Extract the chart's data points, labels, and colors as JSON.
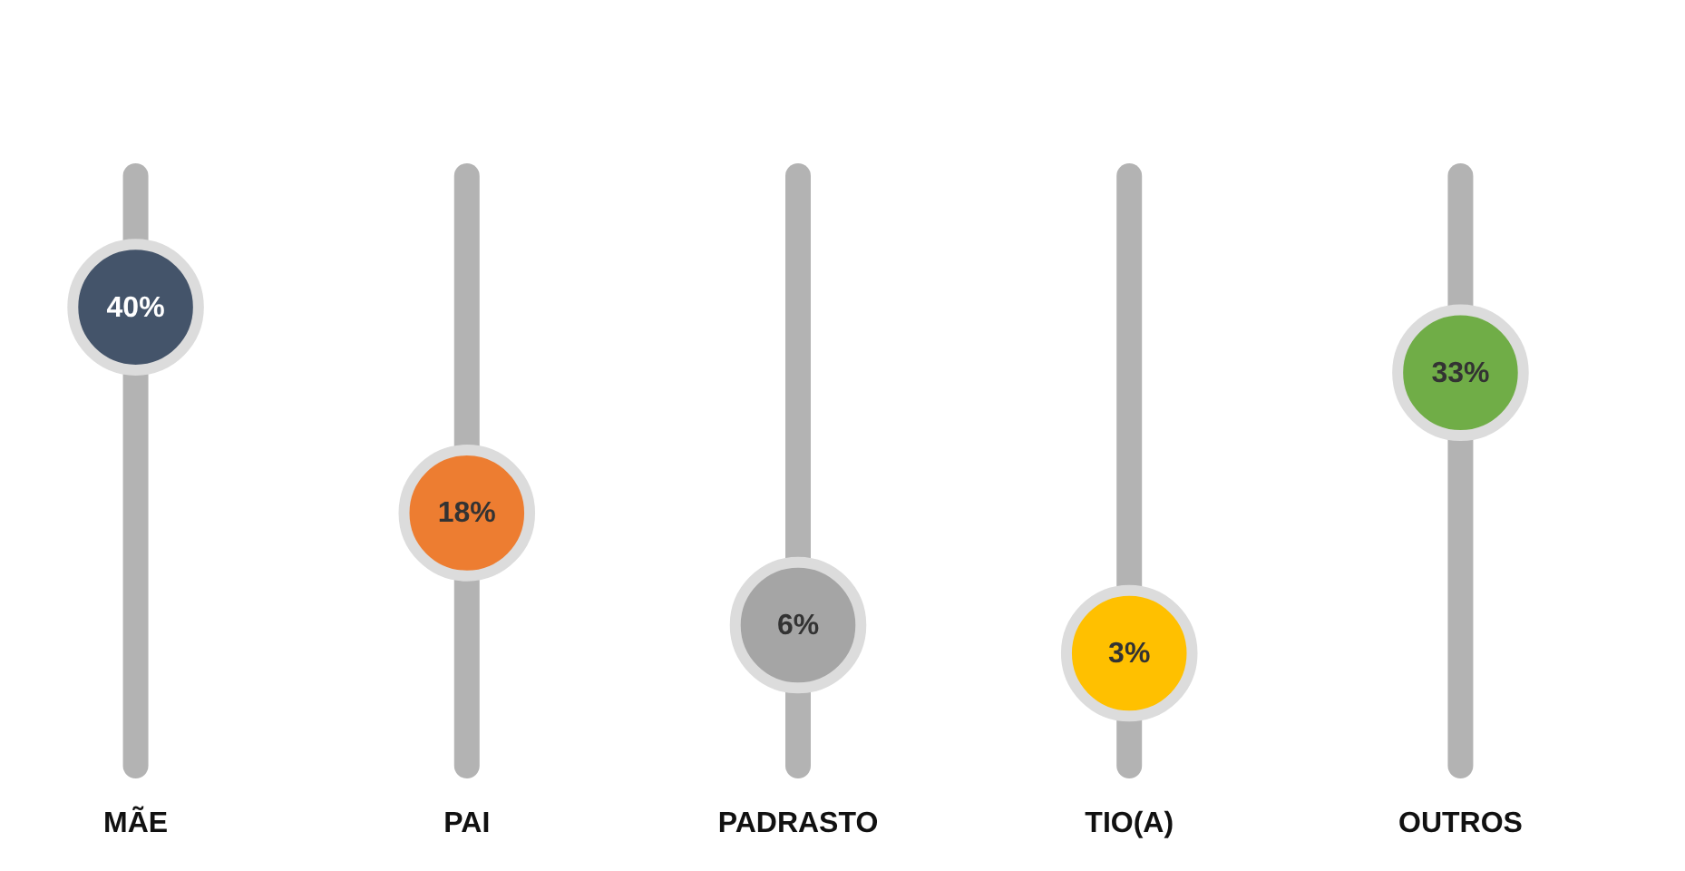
{
  "chart_data": {
    "type": "scatter",
    "categories": [
      "MÃE",
      "PAI",
      "PADRASTO",
      "TIO(A)",
      "OUTROS"
    ],
    "values": [
      40,
      18,
      6,
      3,
      33
    ],
    "colors": [
      "#44546a",
      "#ed7d31",
      "#a5a5a5",
      "#ffc000",
      "#70ad47"
    ],
    "value_labels": [
      "40%",
      "18%",
      "6%",
      "3%",
      "33%"
    ],
    "tick_labels": "x",
    "grid": "x",
    "marker": "circle"
  }
}
